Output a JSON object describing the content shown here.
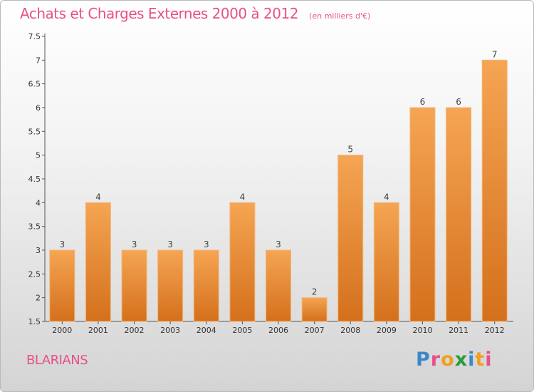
{
  "header": {
    "title": "Achats et Charges Externes 2000 à 2012",
    "subtitle": "(en milliers d'€)"
  },
  "footer": {
    "commune": "BLARIANS",
    "logo_letters": [
      "P",
      "r",
      "o",
      "x",
      "i",
      "t",
      "i"
    ]
  },
  "colors": {
    "accent": "#e8508a",
    "bar_top": "#f5a553",
    "bar_bottom": "#d4701c",
    "logo": [
      "#3b88c8",
      "#e8508a",
      "#f0a020",
      "#2a9d3a",
      "#3b88c8",
      "#f0a020",
      "#e8508a"
    ]
  },
  "chart_data": {
    "type": "bar",
    "categories": [
      "2000",
      "2001",
      "2002",
      "2003",
      "2004",
      "2005",
      "2006",
      "2007",
      "2008",
      "2009",
      "2010",
      "2011",
      "2012"
    ],
    "values": [
      3,
      4,
      3,
      3,
      3,
      4,
      3,
      2,
      5,
      4,
      6,
      6,
      7
    ],
    "labels": [
      "3",
      "4",
      "3",
      "3",
      "3",
      "4",
      "3",
      "2",
      "5",
      "4",
      "6",
      "6",
      "7"
    ],
    "yticks": [
      "1.5",
      "2",
      "2.5",
      "3",
      "3.5",
      "4",
      "4.5",
      "5",
      "5.5",
      "6",
      "6.5",
      "7",
      "7.5"
    ],
    "ylim": [
      1.5,
      7.5
    ],
    "grid": false,
    "legend": "none"
  }
}
